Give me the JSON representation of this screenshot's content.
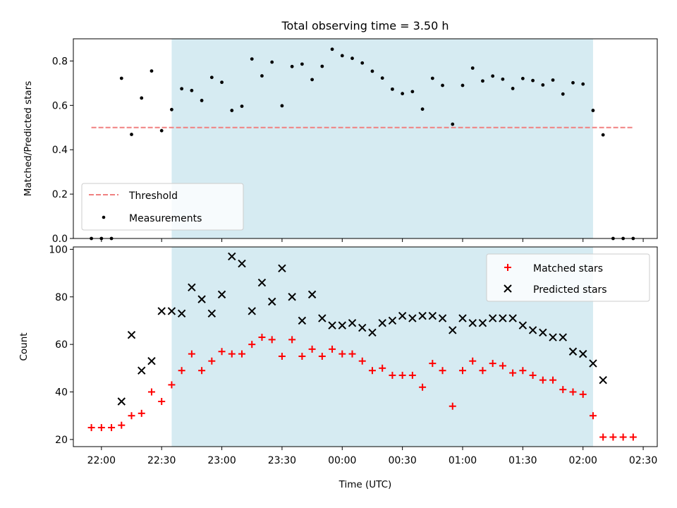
{
  "chart_data": [
    {
      "type": "scatter",
      "title": "Total observing time = 3.50 h",
      "xlabel": "",
      "ylabel": "Matched/Predicted stars",
      "ylim": [
        0,
        0.9
      ],
      "yticks": [
        "0.0",
        "0.2",
        "0.4",
        "0.6",
        "0.8"
      ],
      "shaded_span": [
        "22:35",
        "02:05"
      ],
      "shade_color": "#add8e6",
      "grid": false,
      "legend_position": "lower-left",
      "threshold": {
        "name": "Threshold",
        "value": 0.5,
        "x_range": [
          "21:55",
          "02:25"
        ],
        "color": "#f08080"
      },
      "series": [
        {
          "name": "Measurements",
          "color": "#000000",
          "marker": "dot",
          "x": [
            "21:55",
            "22:00",
            "22:05",
            "22:10",
            "22:15",
            "22:20",
            "22:25",
            "22:30",
            "22:35",
            "22:40",
            "22:45",
            "22:50",
            "22:55",
            "23:00",
            "23:05",
            "23:10",
            "23:15",
            "23:20",
            "23:25",
            "23:30",
            "23:35",
            "23:40",
            "23:45",
            "23:50",
            "23:55",
            "00:00",
            "00:05",
            "00:10",
            "00:15",
            "00:20",
            "00:25",
            "00:30",
            "00:35",
            "00:40",
            "00:45",
            "00:50",
            "00:55",
            "01:00",
            "01:05",
            "01:10",
            "01:15",
            "01:20",
            "01:25",
            "01:30",
            "01:35",
            "01:40",
            "01:45",
            "01:50",
            "01:55",
            "02:00",
            "02:05",
            "02:10",
            "02:15",
            "02:20",
            "02:25"
          ],
          "y": [
            0.0,
            0.0,
            0.0,
            0.722,
            0.469,
            0.633,
            0.755,
            0.486,
            0.581,
            0.675,
            0.667,
            0.622,
            0.726,
            0.704,
            0.577,
            0.596,
            0.809,
            0.733,
            0.795,
            0.598,
            0.775,
            0.786,
            0.716,
            0.776,
            0.853,
            0.824,
            0.812,
            0.791,
            0.754,
            0.723,
            0.673,
            0.653,
            0.662,
            0.583,
            0.722,
            0.69,
            0.515,
            0.69,
            0.768,
            0.71,
            0.732,
            0.718,
            0.676,
            0.721,
            0.712,
            0.692,
            0.714,
            0.651,
            0.702,
            0.696,
            0.577,
            0.467,
            0.0,
            0.0,
            0.0
          ]
        }
      ]
    },
    {
      "type": "scatter",
      "title": "",
      "xlabel": "Time (UTC)",
      "ylabel": "Count",
      "ylim": [
        17,
        101
      ],
      "yticks": [
        "20",
        "40",
        "60",
        "80",
        "100"
      ],
      "xticks": [
        "22:00",
        "22:30",
        "23:00",
        "23:30",
        "00:00",
        "00:30",
        "01:00",
        "01:30",
        "02:00",
        "02:30"
      ],
      "shaded_span": [
        "22:35",
        "02:05"
      ],
      "shade_color": "#add8e6",
      "grid": false,
      "legend_position": "upper-right",
      "series": [
        {
          "name": "Matched stars",
          "color": "#ff0000",
          "marker": "plus",
          "x": [
            "21:55",
            "22:00",
            "22:05",
            "22:10",
            "22:15",
            "22:20",
            "22:25",
            "22:30",
            "22:35",
            "22:40",
            "22:45",
            "22:50",
            "22:55",
            "23:00",
            "23:05",
            "23:10",
            "23:15",
            "23:20",
            "23:25",
            "23:30",
            "23:35",
            "23:40",
            "23:45",
            "23:50",
            "23:55",
            "00:00",
            "00:05",
            "00:10",
            "00:15",
            "00:20",
            "00:25",
            "00:30",
            "00:35",
            "00:40",
            "00:45",
            "00:50",
            "00:55",
            "01:00",
            "01:05",
            "01:10",
            "01:15",
            "01:20",
            "01:25",
            "01:30",
            "01:35",
            "01:40",
            "01:45",
            "01:50",
            "01:55",
            "02:00",
            "02:05",
            "02:10",
            "02:15",
            "02:20",
            "02:25"
          ],
          "y": [
            25,
            25,
            25,
            26,
            30,
            31,
            40,
            36,
            43,
            49,
            56,
            49,
            53,
            57,
            56,
            56,
            60,
            63,
            62,
            55,
            62,
            55,
            58,
            55,
            58,
            56,
            56,
            53,
            49,
            50,
            47,
            47,
            47,
            42,
            52,
            49,
            34,
            49,
            53,
            49,
            52,
            51,
            48,
            49,
            47,
            45,
            45,
            41,
            40,
            39,
            30,
            21,
            21,
            21,
            21
          ]
        },
        {
          "name": "Predicted stars",
          "color": "#000000",
          "marker": "x",
          "x": [
            "22:10",
            "22:15",
            "22:20",
            "22:25",
            "22:30",
            "22:35",
            "22:40",
            "22:45",
            "22:50",
            "22:55",
            "23:00",
            "23:05",
            "23:10",
            "23:15",
            "23:20",
            "23:25",
            "23:30",
            "23:35",
            "23:40",
            "23:45",
            "23:50",
            "23:55",
            "00:00",
            "00:05",
            "00:10",
            "00:15",
            "00:20",
            "00:25",
            "00:30",
            "00:35",
            "00:40",
            "00:45",
            "00:50",
            "00:55",
            "01:00",
            "01:05",
            "01:10",
            "01:15",
            "01:20",
            "01:25",
            "01:30",
            "01:35",
            "01:40",
            "01:45",
            "01:50",
            "01:55",
            "02:00",
            "02:05",
            "02:10"
          ],
          "y": [
            36,
            64,
            49,
            53,
            74,
            74,
            73,
            84,
            79,
            73,
            81,
            97,
            94,
            74,
            86,
            78,
            92,
            80,
            70,
            81,
            71,
            68,
            68,
            69,
            67,
            65,
            69,
            70,
            72,
            71,
            72,
            72,
            71,
            66,
            71,
            69,
            69,
            71,
            71,
            71,
            68,
            66,
            65,
            63,
            63,
            57,
            56,
            52,
            45
          ]
        }
      ]
    }
  ]
}
